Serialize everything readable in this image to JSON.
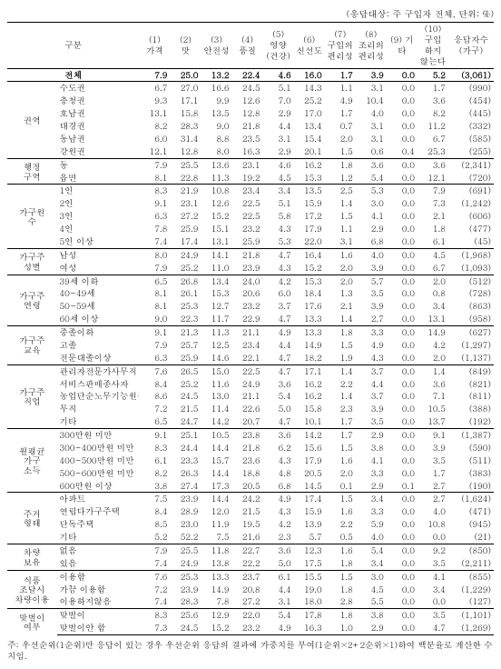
{
  "top_note": "(응답대상: 주 구입자 전체, 단위: %)",
  "header": {
    "category": "구분",
    "cols": [
      "(1)\n가격",
      "(2)\n맛",
      "(3)\n안전성",
      "(4)\n품질",
      "(5)\n영양\n(건강)",
      "(6)\n신선도",
      "(7)\n구입의\n편리성",
      "(8)\n조리의\n편리성",
      "(9) 기타",
      "(10)\n구입\n하지\n않는다",
      "응답자수\n(가구)"
    ]
  },
  "total": {
    "label": "전체",
    "vals": [
      "7.9",
      "25.0",
      "13.2",
      "22.4",
      "4.6",
      "16.0",
      "1.7",
      "3.9",
      "0.0",
      "5.2",
      "(3,061)"
    ]
  },
  "groups": [
    {
      "label": "권역",
      "rows": [
        {
          "sub": "수도권",
          "vals": [
            "6.7",
            "27.0",
            "16.6",
            "24.5",
            "5.1",
            "14.3",
            "1.1",
            "3.1",
            "0.0",
            "1.7",
            "(990)"
          ]
        },
        {
          "sub": "충청권",
          "vals": [
            "9.3",
            "17.1",
            "9.9",
            "12.6",
            "7.0",
            "25.2",
            "4.9",
            "10.4",
            "0.0",
            "3.6",
            "(454)"
          ]
        },
        {
          "sub": "호남권",
          "vals": [
            "13.1",
            "15.8",
            "13.5",
            "12.8",
            "2.9",
            "17.0",
            "1.7",
            "4.0",
            "0.0",
            "8.2",
            "(445)"
          ]
        },
        {
          "sub": "대경권",
          "vals": [
            "8.2",
            "28.3",
            "9.0",
            "21.8",
            "4.4",
            "13.4",
            "0.7",
            "3.1",
            "0.0",
            "11.2",
            "(332)"
          ]
        },
        {
          "sub": "동남권",
          "vals": [
            "6.0",
            "31.4",
            "8.8",
            "23.5",
            "3.1",
            "15.4",
            "2.0",
            "3.1",
            "0.0",
            "6.7",
            "(585)"
          ]
        },
        {
          "sub": "강원권",
          "vals": [
            "12.1",
            "12.8",
            "8.0",
            "16.3",
            "2.9",
            "20.1",
            "1.5",
            "0.6",
            "0.4",
            "25.3",
            "(255)"
          ]
        }
      ]
    },
    {
      "label": "행정\n구역",
      "rows": [
        {
          "sub": "동",
          "vals": [
            "7.9",
            "25.5",
            "13.6",
            "23.1",
            "4.6",
            "16.2",
            "1.8",
            "3.6",
            "0.0",
            "3.6",
            "(2,341)"
          ]
        },
        {
          "sub": "읍면",
          "vals": [
            "8.1",
            "22.8",
            "11.3",
            "19.2",
            "4.5",
            "15.3",
            "1.2",
            "5.4",
            "0.0",
            "12.1",
            "(720)"
          ]
        }
      ]
    },
    {
      "label": "가구원\n수",
      "rows": [
        {
          "sub": "1인",
          "vals": [
            "8.3",
            "21.9",
            "10.8",
            "23.4",
            "3.4",
            "13.5",
            "2.5",
            "5.3",
            "0.0",
            "7.9",
            "(691)"
          ]
        },
        {
          "sub": "2인",
          "vals": [
            "9.1",
            "23.1",
            "12.6",
            "22.5",
            "5.1",
            "15.9",
            "1.4",
            "3.0",
            "0.0",
            "7.3",
            "(1,242)"
          ]
        },
        {
          "sub": "3인",
          "vals": [
            "6.3",
            "27.2",
            "15.2",
            "22.5",
            "5.8",
            "17.2",
            "1.5",
            "4.1",
            "0.0",
            "2.1",
            "(606)"
          ]
        },
        {
          "sub": "4인",
          "vals": [
            "7.8",
            "25.9",
            "15.1",
            "23.2",
            "4.3",
            "17.9",
            "1.1",
            "2.9",
            "0.0",
            "1.8",
            "(477)"
          ]
        },
        {
          "sub": "5인 이상",
          "vals": [
            "7.4",
            "17.4",
            "13.1",
            "25.9",
            "5.3",
            "22.0",
            "3.1",
            "6.8",
            "0.0",
            "6.1",
            "(45)"
          ]
        }
      ]
    },
    {
      "label": "가구주\n성별",
      "rows": [
        {
          "sub": "남성",
          "vals": [
            "8.0",
            "24.9",
            "14.1",
            "21.8",
            "4.7",
            "16.4",
            "1.6",
            "4.0",
            "0.0",
            "4.5",
            "(1,968)"
          ]
        },
        {
          "sub": "여성",
          "vals": [
            "7.9",
            "25.2",
            "11.0",
            "23.9",
            "4.3",
            "15.2",
            "2.0",
            "3.9",
            "0.0",
            "6.7",
            "(1,093)"
          ]
        }
      ]
    },
    {
      "label": "가구주\n연령",
      "rows": [
        {
          "sub": "39세 이하",
          "vals": [
            "6.5",
            "26.8",
            "13.4",
            "24.0",
            "4.2",
            "15.3",
            "2.0",
            "5.7",
            "0.0",
            "2.0",
            "(512)"
          ]
        },
        {
          "sub": "40~49세",
          "vals": [
            "8.1",
            "26.1",
            "15.3",
            "20.6",
            "6.0",
            "18.4",
            "1.3",
            "3.5",
            "0.0",
            "0.8",
            "(728)"
          ]
        },
        {
          "sub": "50~59세",
          "vals": [
            "8.1",
            "25.3",
            "12.7",
            "23.2",
            "3.7",
            "17.6",
            "2.1",
            "3.9",
            "0.0",
            "3.4",
            "(863)"
          ]
        },
        {
          "sub": "60세 이상",
          "vals": [
            "9.0",
            "22.3",
            "11.7",
            "22.9",
            "4.7",
            "13.3",
            "1.4",
            "2.7",
            "0.0",
            "13.1",
            "(958)"
          ]
        }
      ]
    },
    {
      "label": "가구주\n교육",
      "rows": [
        {
          "sub": "중졸이하",
          "vals": [
            "9.1",
            "21.3",
            "11.3",
            "21.1",
            "4.9",
            "13.3",
            "1.8",
            "3.3",
            "0.0",
            "14.9",
            "(627)"
          ]
        },
        {
          "sub": "고졸",
          "vals": [
            "7.9",
            "25.7",
            "12.5",
            "23.4",
            "4.4",
            "14.9",
            "1.5",
            "4.9",
            "0.0",
            "4.2",
            "(1,297)"
          ]
        },
        {
          "sub": "전문대졸이상",
          "vals": [
            "6.3",
            "25.9",
            "14.6",
            "22.1",
            "4.7",
            "18.2",
            "1.9",
            "4.3",
            "0.0",
            "2.0",
            "(1,137)"
          ]
        }
      ]
    },
    {
      "label": "가구주\n직업",
      "rows": [
        {
          "sub": "관리자전문가사무직",
          "vals": [
            "7.6",
            "26.5",
            "15.0",
            "22.5",
            "4.7",
            "17.1",
            "1.4",
            "3.7",
            "0.0",
            "1.4",
            "(849)"
          ]
        },
        {
          "sub": "서비스판매종사자",
          "vals": [
            "8.4",
            "25.2",
            "11.6",
            "24.9",
            "3.6",
            "16.2",
            "2.2",
            "4.4",
            "0.0",
            "3.6",
            "(821)"
          ]
        },
        {
          "sub": "농업단순노무기능원등",
          "vals": [
            "8.6",
            "24.5",
            "13.0",
            "21.1",
            "5.4",
            "16.2",
            "1.4",
            "3.7",
            "0.0",
            "7.1",
            "(811)"
          ]
        },
        {
          "sub": "무직",
          "vals": [
            "7.2",
            "21.5",
            "11.4",
            "22.6",
            "5.0",
            "15.8",
            "2.3",
            "3.9",
            "0.0",
            "10.5",
            "(388)"
          ]
        },
        {
          "sub": "기타",
          "vals": [
            "6.5",
            "24.7",
            "14.2",
            "20.7",
            "4.7",
            "10.1",
            "1.7",
            "3.5",
            "0.0",
            "13.7",
            "(192)"
          ]
        }
      ]
    },
    {
      "label": "월평균\n가구\n소득",
      "rows": [
        {
          "sub": "300만원 미만",
          "vals": [
            "9.1",
            "25.1",
            "10.5",
            "23.8",
            "3.6",
            "14.2",
            "1.7",
            "2.9",
            "0.0",
            "9.1",
            "(1,387)"
          ]
        },
        {
          "sub": "300~400만원 미만",
          "vals": [
            "8.3",
            "24.4",
            "14.4",
            "21.8",
            "6.2",
            "15.6",
            "1.5",
            "3.8",
            "0.0",
            "3.9",
            "(590)"
          ]
        },
        {
          "sub": "400~500만원 미만",
          "vals": [
            "6.1",
            "23.3",
            "15.7",
            "23.6",
            "4.3",
            "17.9",
            "1.6",
            "4.1",
            "0.0",
            "3.5",
            "(511)"
          ]
        },
        {
          "sub": "500~600만원 미만",
          "vals": [
            "8.2",
            "26.3",
            "14.4",
            "18.8",
            "4.8",
            "20.5",
            "2.0",
            "3.3",
            "0.0",
            "1.7",
            "(383)"
          ]
        },
        {
          "sub": "600만원 이상",
          "vals": [
            "3.8",
            "27.4",
            "17.3",
            "20.5",
            "6.8",
            "14.5",
            "0.1",
            "2.9",
            "0.1",
            "2.7",
            "(190)"
          ]
        }
      ]
    },
    {
      "label": "주거\n형태",
      "rows": [
        {
          "sub": "아파트",
          "vals": [
            "7.5",
            "23.9",
            "14.4",
            "24.2",
            "4.9",
            "17.4",
            "1.5",
            "3.4",
            "0.0",
            "2.7",
            "(1,624)"
          ]
        },
        {
          "sub": "연립다가구주택",
          "vals": [
            "8.4",
            "28.9",
            "12.0",
            "21.5",
            "4.3",
            "15.9",
            "1.6",
            "3.3",
            "0.0",
            "4.0",
            "(471)"
          ]
        },
        {
          "sub": "단독주택",
          "vals": [
            "8.5",
            "23.0",
            "11.9",
            "19.5",
            "4.2",
            "13.9",
            "2.2",
            "5.9",
            "0.0",
            "10.8",
            "(945)"
          ]
        },
        {
          "sub": "기타",
          "vals": [
            "5.2",
            "52.2",
            "7.5",
            "21.6",
            "2.3",
            "5.7",
            "0.5",
            "4.0",
            "0.0",
            "0.0",
            "(21)"
          ]
        }
      ]
    },
    {
      "label": "차량\n보유",
      "rows": [
        {
          "sub": "없음",
          "vals": [
            "7.9",
            "25.5",
            "11.8",
            "22.7",
            "3.6",
            "12.3",
            "1.6",
            "5.4",
            "0.0",
            "9.2",
            "(850)"
          ]
        },
        {
          "sub": "있음",
          "vals": [
            "7.4",
            "24.9",
            "13.8",
            "22.2",
            "5.0",
            "17.5",
            "1.8",
            "3.4",
            "0.0",
            "3.5",
            "(2,211)"
          ]
        }
      ]
    },
    {
      "label": "식품\n조달시\n차량이용",
      "rows": [
        {
          "sub": "이용함",
          "vals": [
            "7.6",
            "25.3",
            "13.3",
            "23.7",
            "6.1",
            "15.5",
            "1.5",
            "3.0",
            "0.0",
            "4.1",
            "(855)"
          ]
        },
        {
          "sub": "가끔 이용함",
          "vals": [
            "7.2",
            "23.9",
            "14.9",
            "20.8",
            "4.4",
            "19.0",
            "1.8",
            "4.5",
            "0.0",
            "3.4",
            "(1,229)"
          ]
        },
        {
          "sub": "이용하지않음",
          "vals": [
            "7.4",
            "28.3",
            "7.8",
            "27.2",
            "3.1",
            "18.0",
            "2.8",
            "5.5",
            "0.0",
            "0.0",
            "(127)"
          ]
        }
      ]
    },
    {
      "label": "맞벌이\n여부",
      "rows": [
        {
          "sub": "맞벌이",
          "vals": [
            "8.3",
            "25.6",
            "12.9",
            "22.0",
            "5.4",
            "17.8",
            "1.8",
            "3.8",
            "0.0",
            "3.5",
            "(1,101)"
          ]
        },
        {
          "sub": "맞벌이안 함",
          "vals": [
            "7.3",
            "24.5",
            "15.2",
            "23.2",
            "4.9",
            "16.3",
            "1.0",
            "2.9",
            "0.0",
            "4.7",
            "(1,269)"
          ]
        }
      ]
    }
  ],
  "footnote": "주: 우선순위(1순위)만 응답이 있는 경우 우선순위 응답의 결과에 가중치를 부여(1순위×2+2순위×1)하여 백분율로 계산한 수치임."
}
